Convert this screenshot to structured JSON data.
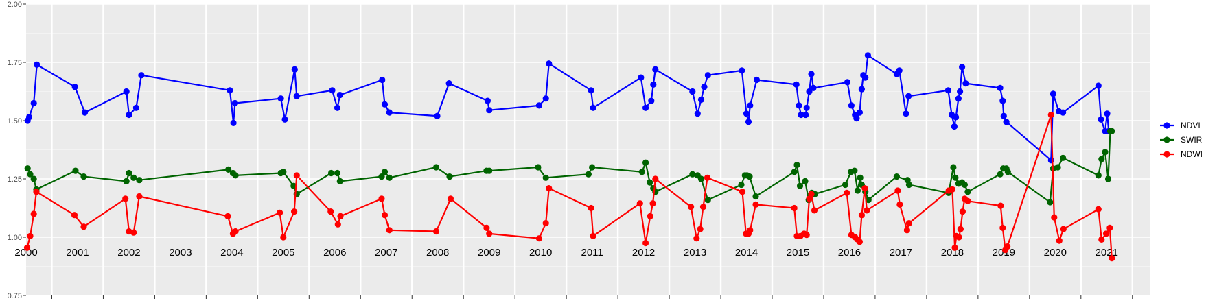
{
  "chart_data": {
    "type": "line",
    "ylim": [
      0.75,
      2.0
    ],
    "y_ticks": [
      "0.75",
      "1.00",
      "1.25",
      "1.50",
      "1.75",
      "2.00"
    ],
    "y_tick_values": [
      0.75,
      1.0,
      1.25,
      1.5,
      1.75,
      2.0
    ],
    "x_range": [
      2000.0,
      2021.85
    ],
    "years": [
      "2000",
      "2001",
      "2002",
      "2003",
      "2004",
      "2005",
      "2006",
      "2007",
      "2008",
      "2009",
      "2010",
      "2011",
      "2012",
      "2013",
      "2014",
      "2015",
      "2016",
      "2017",
      "2018",
      "2019",
      "2020",
      "2021"
    ],
    "grid": true,
    "legend_position": "right",
    "series": [
      {
        "name": "NDVI",
        "color": "#0000ff",
        "points": [
          [
            2000.03,
            1.5
          ],
          [
            2000.06,
            1.515
          ],
          [
            2000.15,
            1.575
          ],
          [
            2000.21,
            1.74
          ],
          [
            2000.95,
            1.645
          ],
          [
            2001.14,
            1.535
          ],
          [
            2001.95,
            1.625
          ],
          [
            2002.0,
            1.525
          ],
          [
            2002.14,
            1.555
          ],
          [
            2002.24,
            1.695
          ],
          [
            2003.96,
            1.63
          ],
          [
            2004.03,
            1.49
          ],
          [
            2004.06,
            1.575
          ],
          [
            2004.95,
            1.595
          ],
          [
            2005.03,
            1.505
          ],
          [
            2005.22,
            1.72
          ],
          [
            2005.26,
            1.605
          ],
          [
            2005.95,
            1.63
          ],
          [
            2006.05,
            1.555
          ],
          [
            2006.1,
            1.61
          ],
          [
            2006.92,
            1.675
          ],
          [
            2006.97,
            1.57
          ],
          [
            2007.06,
            1.535
          ],
          [
            2007.99,
            1.52
          ],
          [
            2008.22,
            1.66
          ],
          [
            2008.97,
            1.585
          ],
          [
            2009.0,
            1.545
          ],
          [
            2009.97,
            1.565
          ],
          [
            2010.1,
            1.595
          ],
          [
            2010.16,
            1.745
          ],
          [
            2010.98,
            1.63
          ],
          [
            2011.02,
            1.555
          ],
          [
            2011.95,
            1.685
          ],
          [
            2012.04,
            1.555
          ],
          [
            2012.15,
            1.585
          ],
          [
            2012.19,
            1.655
          ],
          [
            2012.23,
            1.72
          ],
          [
            2012.95,
            1.625
          ],
          [
            2013.05,
            1.53
          ],
          [
            2013.12,
            1.59
          ],
          [
            2013.18,
            1.645
          ],
          [
            2013.25,
            1.695
          ],
          [
            2013.91,
            1.715
          ],
          [
            2014.0,
            1.53
          ],
          [
            2014.04,
            1.495
          ],
          [
            2014.07,
            1.565
          ],
          [
            2014.2,
            1.675
          ],
          [
            2014.97,
            1.655
          ],
          [
            2015.02,
            1.565
          ],
          [
            2015.06,
            1.525
          ],
          [
            2015.15,
            1.525
          ],
          [
            2015.17,
            1.555
          ],
          [
            2015.22,
            1.625
          ],
          [
            2015.26,
            1.7
          ],
          [
            2015.3,
            1.64
          ],
          [
            2015.96,
            1.665
          ],
          [
            2016.04,
            1.565
          ],
          [
            2016.11,
            1.525
          ],
          [
            2016.14,
            1.51
          ],
          [
            2016.2,
            1.535
          ],
          [
            2016.24,
            1.635
          ],
          [
            2016.27,
            1.695
          ],
          [
            2016.31,
            1.685
          ],
          [
            2016.36,
            1.78
          ],
          [
            2016.92,
            1.7
          ],
          [
            2016.97,
            1.715
          ],
          [
            2017.1,
            1.53
          ],
          [
            2017.15,
            1.605
          ],
          [
            2017.92,
            1.63
          ],
          [
            2017.99,
            1.525
          ],
          [
            2018.04,
            1.475
          ],
          [
            2018.07,
            1.515
          ],
          [
            2018.12,
            1.595
          ],
          [
            2018.15,
            1.625
          ],
          [
            2018.19,
            1.73
          ],
          [
            2018.26,
            1.66
          ],
          [
            2018.93,
            1.64
          ],
          [
            2018.98,
            1.585
          ],
          [
            2019.0,
            1.52
          ],
          [
            2019.05,
            1.495
          ],
          [
            2019.92,
            1.33
          ],
          [
            2019.96,
            1.615
          ],
          [
            2020.07,
            1.54
          ],
          [
            2020.15,
            1.535
          ],
          [
            2020.84,
            1.65
          ],
          [
            2020.89,
            1.505
          ],
          [
            2020.97,
            1.455
          ],
          [
            2021.01,
            1.53
          ],
          [
            2021.04,
            1.455
          ]
        ]
      },
      {
        "name": "SWIR",
        "color": "#006400",
        "points": [
          [
            2000.03,
            1.295
          ],
          [
            2000.08,
            1.27
          ],
          [
            2000.15,
            1.25
          ],
          [
            2000.2,
            1.205
          ],
          [
            2000.96,
            1.285
          ],
          [
            2001.12,
            1.26
          ],
          [
            2001.95,
            1.24
          ],
          [
            2002.0,
            1.275
          ],
          [
            2002.09,
            1.255
          ],
          [
            2002.2,
            1.245
          ],
          [
            2003.93,
            1.29
          ],
          [
            2004.02,
            1.275
          ],
          [
            2004.07,
            1.265
          ],
          [
            2004.95,
            1.275
          ],
          [
            2005.0,
            1.28
          ],
          [
            2005.2,
            1.22
          ],
          [
            2005.26,
            1.185
          ],
          [
            2005.93,
            1.275
          ],
          [
            2006.05,
            1.275
          ],
          [
            2006.1,
            1.24
          ],
          [
            2006.91,
            1.26
          ],
          [
            2006.97,
            1.28
          ],
          [
            2007.06,
            1.255
          ],
          [
            2007.97,
            1.3
          ],
          [
            2008.23,
            1.26
          ],
          [
            2008.95,
            1.285
          ],
          [
            2009.0,
            1.285
          ],
          [
            2009.95,
            1.3
          ],
          [
            2010.1,
            1.255
          ],
          [
            2010.93,
            1.27
          ],
          [
            2011.0,
            1.3
          ],
          [
            2011.97,
            1.28
          ],
          [
            2012.04,
            1.32
          ],
          [
            2012.12,
            1.235
          ],
          [
            2012.19,
            1.21
          ],
          [
            2012.23,
            1.195
          ],
          [
            2012.95,
            1.27
          ],
          [
            2013.05,
            1.265
          ],
          [
            2013.12,
            1.25
          ],
          [
            2013.25,
            1.16
          ],
          [
            2013.9,
            1.225
          ],
          [
            2013.97,
            1.265
          ],
          [
            2014.01,
            1.265
          ],
          [
            2014.06,
            1.26
          ],
          [
            2014.18,
            1.175
          ],
          [
            2014.93,
            1.28
          ],
          [
            2014.98,
            1.31
          ],
          [
            2015.04,
            1.22
          ],
          [
            2015.14,
            1.24
          ],
          [
            2015.21,
            1.16
          ],
          [
            2015.27,
            1.19
          ],
          [
            2015.33,
            1.185
          ],
          [
            2015.92,
            1.225
          ],
          [
            2016.03,
            1.28
          ],
          [
            2016.1,
            1.285
          ],
          [
            2016.16,
            1.2
          ],
          [
            2016.21,
            1.255
          ],
          [
            2016.24,
            1.225
          ],
          [
            2016.31,
            1.195
          ],
          [
            2016.37,
            1.16
          ],
          [
            2016.92,
            1.26
          ],
          [
            2017.13,
            1.245
          ],
          [
            2017.16,
            1.225
          ],
          [
            2017.93,
            1.19
          ],
          [
            2018.02,
            1.3
          ],
          [
            2018.06,
            1.255
          ],
          [
            2018.12,
            1.23
          ],
          [
            2018.19,
            1.235
          ],
          [
            2018.24,
            1.225
          ],
          [
            2018.3,
            1.195
          ],
          [
            2018.93,
            1.27
          ],
          [
            2018.99,
            1.295
          ],
          [
            2019.05,
            1.295
          ],
          [
            2019.08,
            1.28
          ],
          [
            2019.9,
            1.15
          ],
          [
            2019.96,
            1.295
          ],
          [
            2020.05,
            1.3
          ],
          [
            2020.15,
            1.34
          ],
          [
            2020.84,
            1.265
          ],
          [
            2020.9,
            1.335
          ],
          [
            2020.97,
            1.365
          ],
          [
            2021.03,
            1.25
          ],
          [
            2021.07,
            1.455
          ],
          [
            2021.1,
            1.455
          ]
        ]
      },
      {
        "name": "NDWI",
        "color": "#ff0000",
        "points": [
          [
            2000.02,
            0.955
          ],
          [
            2000.08,
            1.005
          ],
          [
            2000.15,
            1.1
          ],
          [
            2000.2,
            1.195
          ],
          [
            2000.94,
            1.095
          ],
          [
            2001.12,
            1.045
          ],
          [
            2001.93,
            1.165
          ],
          [
            2002.0,
            1.025
          ],
          [
            2002.09,
            1.02
          ],
          [
            2002.2,
            1.175
          ],
          [
            2003.92,
            1.09
          ],
          [
            2004.02,
            1.015
          ],
          [
            2004.07,
            1.025
          ],
          [
            2004.93,
            1.105
          ],
          [
            2005.0,
            1.0
          ],
          [
            2005.21,
            1.11
          ],
          [
            2005.26,
            1.265
          ],
          [
            2005.92,
            1.11
          ],
          [
            2006.06,
            1.055
          ],
          [
            2006.11,
            1.09
          ],
          [
            2006.91,
            1.165
          ],
          [
            2006.97,
            1.095
          ],
          [
            2007.06,
            1.03
          ],
          [
            2007.97,
            1.025
          ],
          [
            2008.25,
            1.165
          ],
          [
            2008.95,
            1.04
          ],
          [
            2009.0,
            1.015
          ],
          [
            2009.97,
            0.995
          ],
          [
            2010.1,
            1.06
          ],
          [
            2010.16,
            1.21
          ],
          [
            2010.98,
            1.125
          ],
          [
            2011.02,
            1.005
          ],
          [
            2011.93,
            1.145
          ],
          [
            2012.04,
            0.975
          ],
          [
            2012.13,
            1.09
          ],
          [
            2012.18,
            1.145
          ],
          [
            2012.23,
            1.25
          ],
          [
            2012.92,
            1.13
          ],
          [
            2013.03,
            0.995
          ],
          [
            2013.1,
            1.035
          ],
          [
            2013.16,
            1.13
          ],
          [
            2013.24,
            1.255
          ],
          [
            2013.92,
            1.195
          ],
          [
            2013.99,
            1.015
          ],
          [
            2014.04,
            1.015
          ],
          [
            2014.07,
            1.03
          ],
          [
            2014.18,
            1.14
          ],
          [
            2014.93,
            1.125
          ],
          [
            2014.98,
            1.005
          ],
          [
            2015.05,
            1.005
          ],
          [
            2015.12,
            1.015
          ],
          [
            2015.17,
            1.01
          ],
          [
            2015.22,
            1.165
          ],
          [
            2015.26,
            1.185
          ],
          [
            2015.32,
            1.115
          ],
          [
            2015.95,
            1.19
          ],
          [
            2016.04,
            1.01
          ],
          [
            2016.11,
            1.0
          ],
          [
            2016.16,
            0.99
          ],
          [
            2016.2,
            0.98
          ],
          [
            2016.24,
            1.095
          ],
          [
            2016.3,
            1.21
          ],
          [
            2016.34,
            1.115
          ],
          [
            2016.94,
            1.2
          ],
          [
            2016.98,
            1.14
          ],
          [
            2017.12,
            1.03
          ],
          [
            2017.16,
            1.06
          ],
          [
            2017.93,
            1.2
          ],
          [
            2018.0,
            1.205
          ],
          [
            2018.05,
            0.955
          ],
          [
            2018.08,
            1.005
          ],
          [
            2018.13,
            1.0
          ],
          [
            2018.16,
            1.035
          ],
          [
            2018.2,
            1.11
          ],
          [
            2018.24,
            1.165
          ],
          [
            2018.3,
            1.155
          ],
          [
            2018.94,
            1.135
          ],
          [
            2018.98,
            1.04
          ],
          [
            2019.03,
            0.945
          ],
          [
            2019.07,
            0.96
          ],
          [
            2019.92,
            1.525
          ],
          [
            2019.98,
            1.085
          ],
          [
            2020.08,
            0.985
          ],
          [
            2020.16,
            1.035
          ],
          [
            2020.84,
            1.12
          ],
          [
            2020.9,
            0.99
          ],
          [
            2020.99,
            1.015
          ],
          [
            2021.06,
            1.04
          ],
          [
            2021.1,
            0.91
          ]
        ]
      }
    ]
  }
}
